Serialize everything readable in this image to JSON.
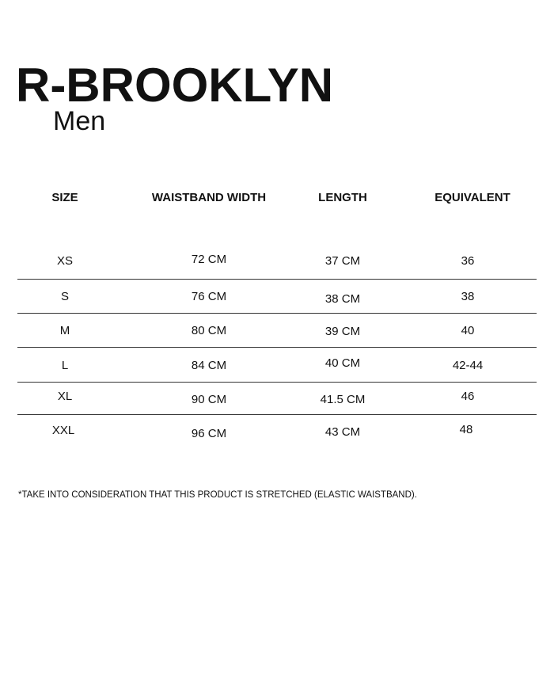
{
  "brand": "R-BROOKLYN",
  "subtitle": "Men",
  "headers": [
    "SIZE",
    "WAISTBAND WIDTH",
    "LENGTH",
    "EQUIVALENT"
  ],
  "rows": [
    [
      "XS",
      "72 CM",
      "37 CM",
      "36"
    ],
    [
      "S",
      "76 CM",
      "38 CM",
      "38"
    ],
    [
      "M",
      "80 CM",
      "39 CM",
      "40"
    ],
    [
      "L",
      "84 CM",
      "40 CM",
      "42-44"
    ],
    [
      "XL",
      "90 CM",
      "41.5 CM",
      "46"
    ],
    [
      "XXL",
      "96 CM",
      "43 CM",
      "48"
    ]
  ],
  "note": "*TAKE INTO CONSIDERATION THAT THIS PRODUCT IS STRETCHED (ELASTIC WAISTBAND)."
}
